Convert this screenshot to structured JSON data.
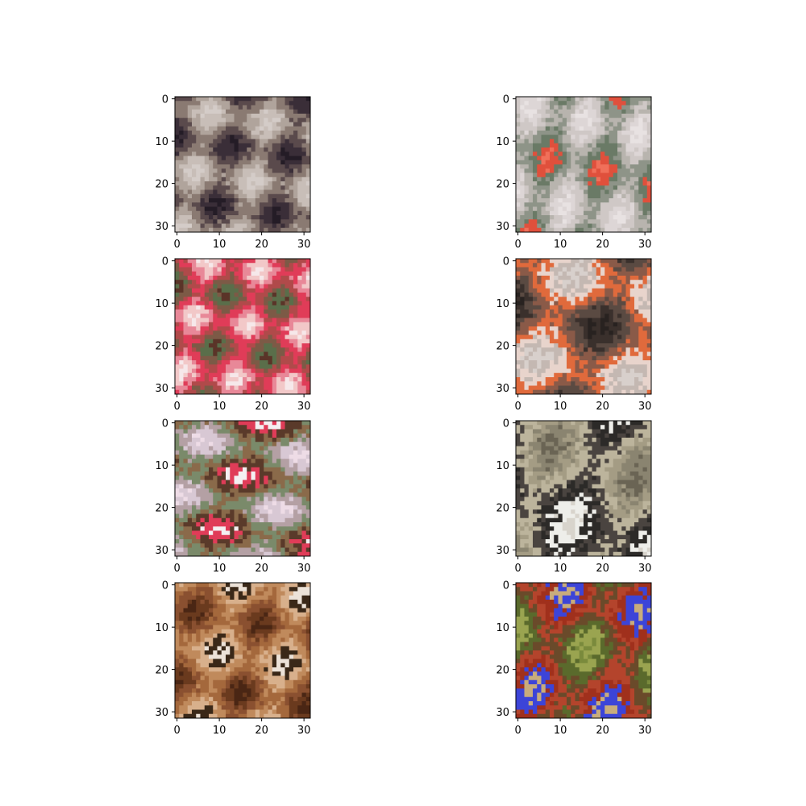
{
  "figure": {
    "background": "#ffffff",
    "frame_color": "#000000",
    "tick_color": "#000000"
  },
  "chart_data": [
    {
      "type": "heatmap",
      "image": "sample-image-1",
      "palette": [
        "#241c26",
        "#3a2e38",
        "#5a4a4c",
        "#8a7a72",
        "#b0a49c",
        "#c8beb8",
        "#d4ccc8"
      ],
      "x_ticks": [
        "0",
        "10",
        "20",
        "30"
      ],
      "y_ticks": [
        "0",
        "10",
        "20",
        "30"
      ],
      "xlim": [
        -0.5,
        31.5
      ],
      "ylim": [
        31.5,
        -0.5
      ]
    },
    {
      "type": "heatmap",
      "image": "sample-image-2",
      "palette": [
        "#e8e2e2",
        "#ddd6d6",
        "#cfc8c6",
        "#b8b4ae",
        "#8e9488",
        "#6a7a66",
        "#e0503c",
        "#f0705a"
      ],
      "x_ticks": [
        "0",
        "10",
        "20",
        "30"
      ],
      "y_ticks": [
        "0",
        "10",
        "20",
        "30"
      ],
      "xlim": [
        -0.5,
        31.5
      ],
      "ylim": [
        31.5,
        -0.5
      ]
    },
    {
      "type": "heatmap",
      "image": "sample-image-3",
      "palette": [
        "#f6e8ea",
        "#f2c8c8",
        "#e88898",
        "#e03c58",
        "#b04a4a",
        "#7c5a46",
        "#5a6e4a",
        "#5a3428"
      ],
      "x_ticks": [
        "0",
        "10",
        "20",
        "30"
      ],
      "y_ticks": [
        "0",
        "10",
        "20",
        "30"
      ],
      "xlim": [
        -0.5,
        31.5
      ],
      "ylim": [
        31.5,
        -0.5
      ]
    },
    {
      "type": "heatmap",
      "image": "sample-image-4",
      "palette": [
        "#d8d0cc",
        "#c4b8b2",
        "#e8d4cc",
        "#e06a3c",
        "#8a5a48",
        "#5a4a42",
        "#3a302c",
        "#282220"
      ],
      "x_ticks": [
        "0",
        "10",
        "20",
        "30"
      ],
      "y_ticks": [
        "0",
        "10",
        "20",
        "30"
      ],
      "xlim": [
        -0.5,
        31.5
      ],
      "ylim": [
        31.5,
        -0.5
      ]
    },
    {
      "type": "heatmap",
      "image": "sample-image-5",
      "palette": [
        "#eedce6",
        "#d8c8d4",
        "#b4a0a4",
        "#7a8a6a",
        "#8a6a4a",
        "#5a3a2a",
        "#e03c58",
        "#f4f0f2"
      ],
      "x_ticks": [
        "0",
        "10",
        "20",
        "30"
      ],
      "y_ticks": [
        "0",
        "10",
        "20",
        "30"
      ],
      "xlim": [
        -0.5,
        31.5
      ],
      "ylim": [
        31.5,
        -0.5
      ]
    },
    {
      "type": "heatmap",
      "image": "sample-image-6",
      "palette": [
        "#6a6454",
        "#8a8470",
        "#a49c84",
        "#bcb49c",
        "#4a4440",
        "#2c2a28",
        "#eeeeea",
        "#d8d4cc"
      ],
      "x_ticks": [
        "0",
        "10",
        "20",
        "30"
      ],
      "y_ticks": [
        "0",
        "10",
        "20",
        "30"
      ],
      "xlim": [
        -0.5,
        31.5
      ],
      "ylim": [
        31.5,
        -0.5
      ]
    },
    {
      "type": "heatmap",
      "image": "sample-image-7",
      "palette": [
        "#4a2614",
        "#6a3a1e",
        "#8a5030",
        "#a4683c",
        "#c08a5c",
        "#d8b08c",
        "#3a2818",
        "#ece2d8"
      ],
      "x_ticks": [
        "0",
        "10",
        "20",
        "30"
      ],
      "y_ticks": [
        "0",
        "10",
        "20",
        "30"
      ],
      "xlim": [
        -0.5,
        31.5
      ],
      "ylim": [
        31.5,
        -0.5
      ]
    },
    {
      "type": "heatmap",
      "image": "sample-image-8",
      "palette": [
        "#7a8a3c",
        "#9aa450",
        "#5a6a2c",
        "#6a4a2a",
        "#b4442c",
        "#a0301c",
        "#3c44d8",
        "#c8ac7c"
      ],
      "x_ticks": [
        "0",
        "10",
        "20",
        "30"
      ],
      "y_ticks": [
        "0",
        "10",
        "20",
        "30"
      ],
      "xlim": [
        -0.5,
        31.5
      ],
      "ylim": [
        31.5,
        -0.5
      ]
    }
  ]
}
